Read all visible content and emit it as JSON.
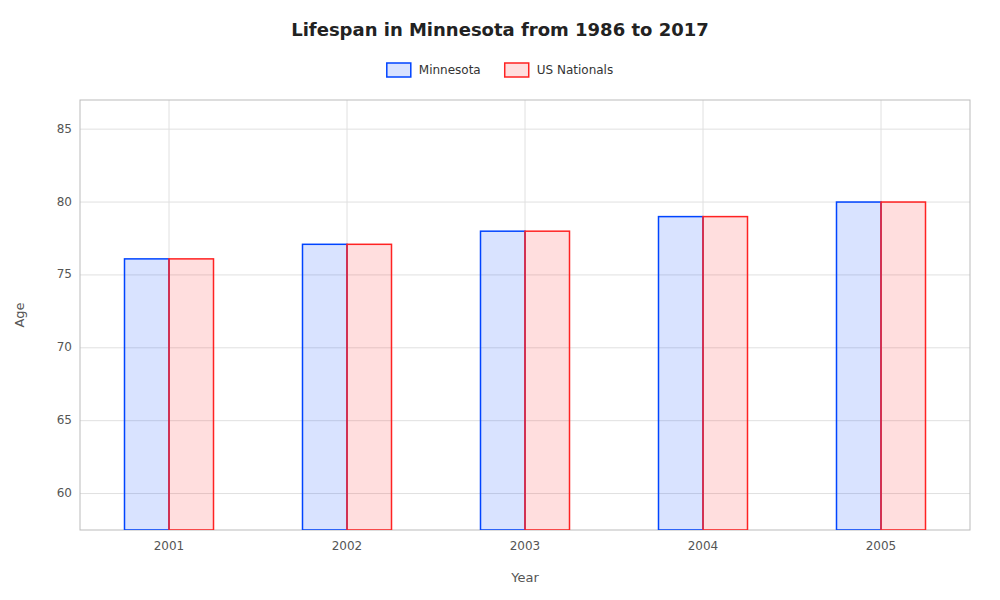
{
  "chart_data": {
    "type": "bar",
    "title": "Lifespan in Minnesota from 1986 to 2017",
    "xlabel": "Year",
    "ylabel": "Age",
    "categories": [
      "2001",
      "2002",
      "2003",
      "2004",
      "2005"
    ],
    "series": [
      {
        "name": "Minnesota",
        "color": "#0044ff",
        "values": [
          76.1,
          77.1,
          78.0,
          79.0,
          80.0
        ]
      },
      {
        "name": "US Nationals",
        "color": "#ff2222",
        "values": [
          76.1,
          77.1,
          78.0,
          79.0,
          80.0
        ]
      }
    ],
    "ylim": [
      57.5,
      87
    ],
    "yticks": [
      60,
      65,
      70,
      75,
      80,
      85
    ],
    "grid": true,
    "legend": "top"
  }
}
